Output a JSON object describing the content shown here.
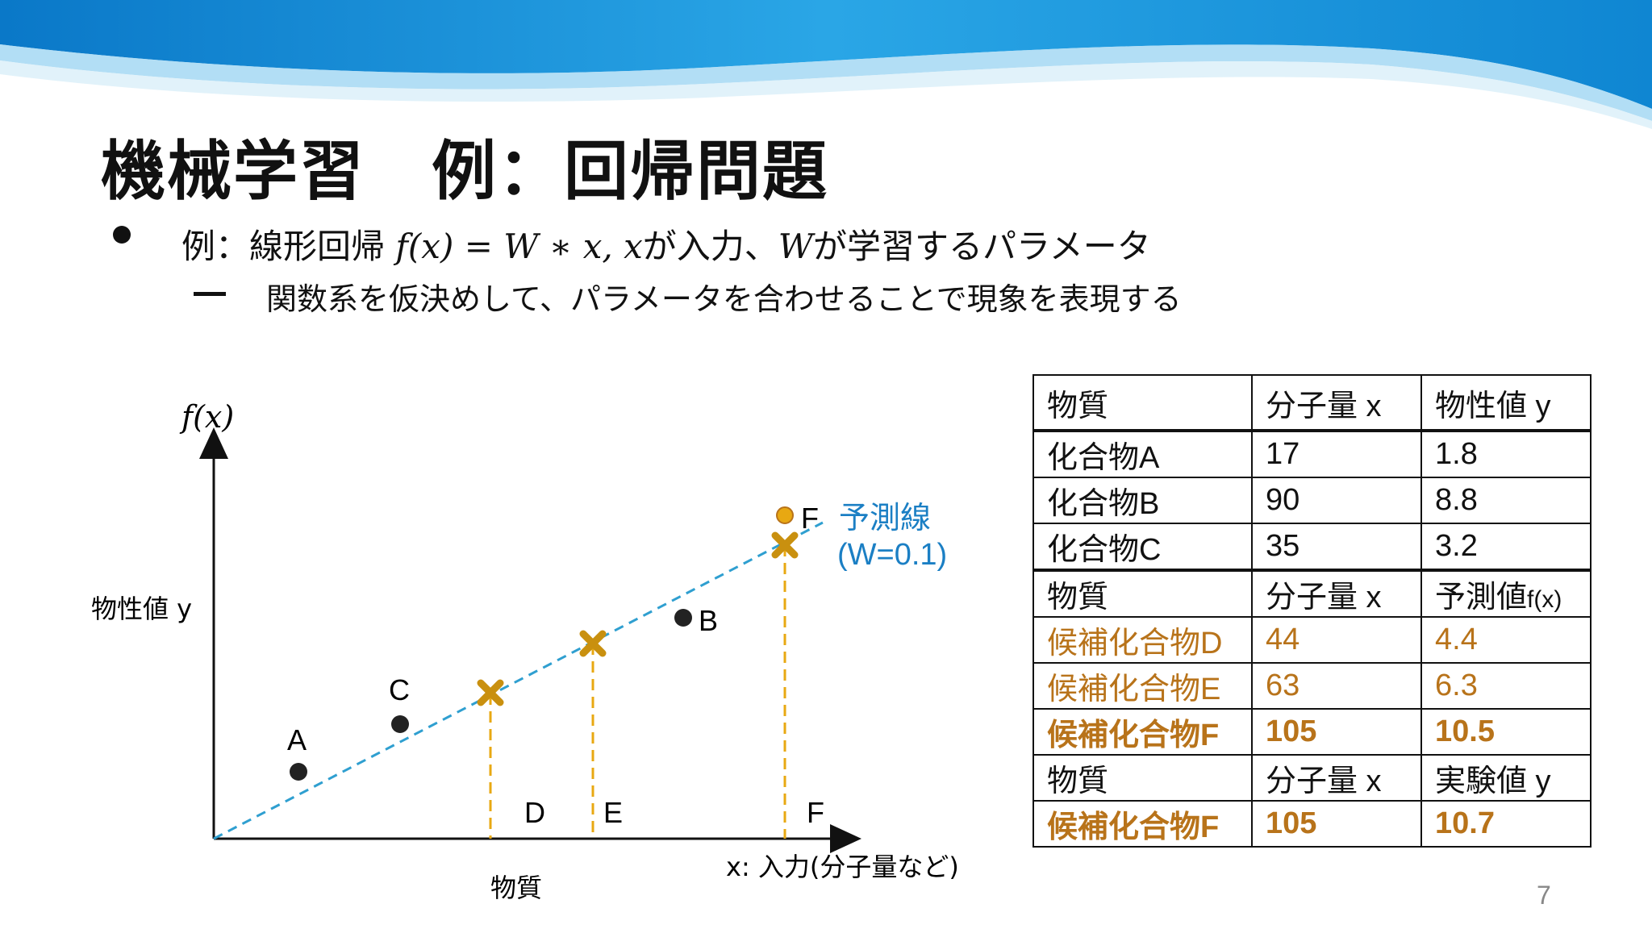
{
  "slide": {
    "title": "機械学習　例：回帰問題",
    "bullet_1_prefix": "例：線形回帰",
    "bullet_1_formula": "f(x) = W ∗ x,",
    "bullet_1_x": "x",
    "bullet_1_mid": "が入力、",
    "bullet_1_w": "W",
    "bullet_1_suffix": "が学習するパラメータ",
    "bullet_2": "関数系を仮決めして、パラメータを合わせることで現象を表現する",
    "page_number": "7"
  },
  "colors": {
    "accent_orange": "#b8731a",
    "line_blue": "#2f9fd0",
    "point_dark": "#222222",
    "point_gold": "#e8a812",
    "banner_blue": "#1b8fd8"
  },
  "diagram": {
    "y_axis_label": "f(x)",
    "y_axis_name": "物性値 y",
    "x_axis_label": "x: 入力(分子量など)",
    "x_axis_name": "物質",
    "line_label_1": "予測線",
    "line_label_2": "(W=0.1)",
    "points": [
      {
        "label": "A",
        "kind": "observed"
      },
      {
        "label": "C",
        "kind": "observed"
      },
      {
        "label": "B",
        "kind": "observed"
      },
      {
        "label": "F",
        "kind": "experiment"
      }
    ],
    "predictions": [
      {
        "label": "D",
        "icon": "cross-icon"
      },
      {
        "label": "E",
        "icon": "cross-icon"
      },
      {
        "label": "F",
        "icon": "cross-icon"
      }
    ]
  },
  "table": {
    "header_1": [
      "物質",
      "分子量 x",
      "物性値 y"
    ],
    "known": [
      [
        "化合物A",
        "17",
        "1.8"
      ],
      [
        "化合物B",
        "90",
        "8.8"
      ],
      [
        "化合物C",
        "35",
        "3.2"
      ]
    ],
    "header_2": [
      "物質",
      "分子量 x",
      "予測値",
      "f(x)"
    ],
    "candidates": [
      [
        "候補化合物D",
        "44",
        "4.4"
      ],
      [
        "候補化合物E",
        "63",
        "6.3"
      ]
    ],
    "candidate_f": [
      "候補化合物F",
      "105",
      "10.5"
    ],
    "header_3": [
      "物質",
      "分子量 x",
      "実験値 y"
    ],
    "experiment_f": [
      "候補化合物F",
      "105",
      "10.7"
    ]
  }
}
